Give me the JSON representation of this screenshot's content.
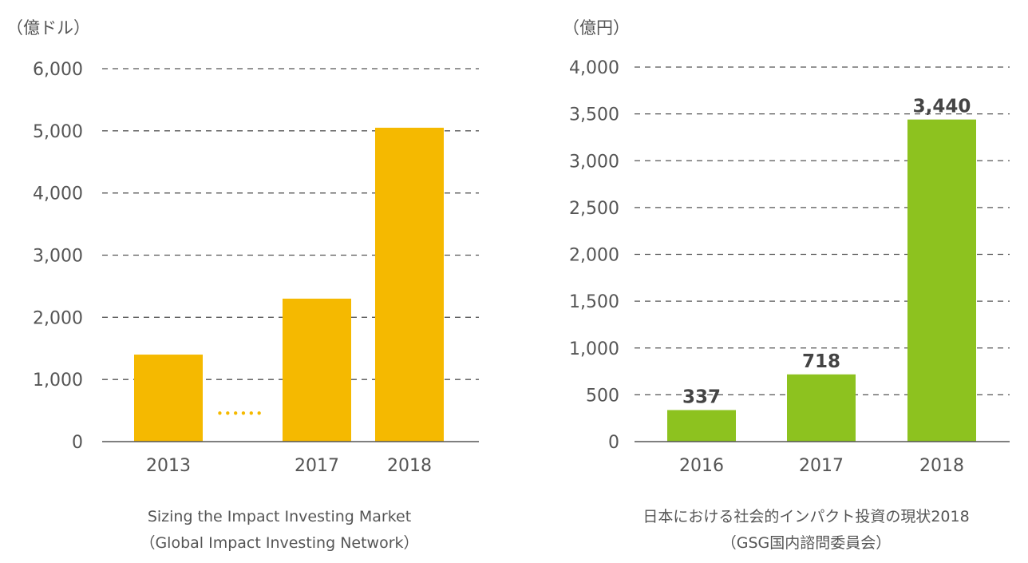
{
  "chart_data": [
    {
      "type": "bar",
      "unit_label": "（億ドル）",
      "categories": [
        "2013",
        "2017",
        "2018"
      ],
      "values": [
        1400,
        2300,
        5050
      ],
      "yticks": [
        "0",
        "1,000",
        "2,000",
        "3,000",
        "4,000",
        "5,000",
        "6,000"
      ],
      "ylim": [
        0,
        6000
      ],
      "bar_color": "#f5b900",
      "gap_marker": "••••••",
      "value_labels": [],
      "caption": [
        "Sizing the Impact Investing Market",
        "（Global Impact Investing Network）"
      ]
    },
    {
      "type": "bar",
      "unit_label": "（億円）",
      "categories": [
        "2016",
        "2017",
        "2018"
      ],
      "values": [
        337,
        718,
        3440
      ],
      "yticks": [
        "0",
        "500",
        "1,000",
        "1,500",
        "2,000",
        "2,500",
        "3,000",
        "3,500",
        "4,000"
      ],
      "ylim": [
        0,
        4000
      ],
      "bar_color": "#8dc21f",
      "value_labels": [
        "337",
        "718",
        "3,440"
      ],
      "caption": [
        "日本における社会的インパクト投資の現状2018",
        "（GSG国内諮問委員会）"
      ]
    }
  ]
}
